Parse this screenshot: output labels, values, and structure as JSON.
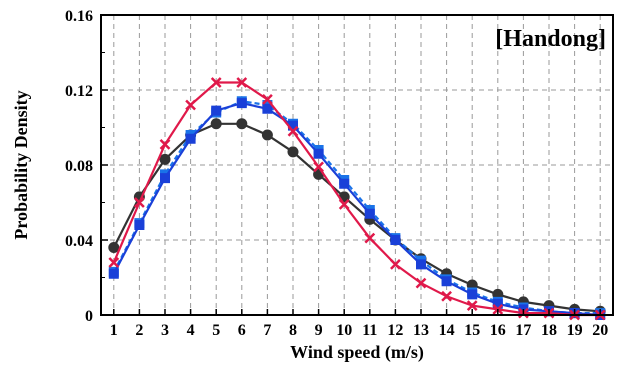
{
  "chart_data": {
    "type": "line",
    "annotation": "[Handong]",
    "xlabel": "Wind speed (m/s)",
    "ylabel": "Probability Density",
    "xlim": [
      0.5,
      20.5
    ],
    "ylim": [
      0,
      0.16
    ],
    "x": [
      1,
      2,
      3,
      4,
      5,
      6,
      7,
      8,
      9,
      10,
      11,
      12,
      13,
      14,
      15,
      16,
      17,
      18,
      19,
      20
    ],
    "xticks": [
      "1",
      "2",
      "3",
      "4",
      "5",
      "6",
      "7",
      "8",
      "9",
      "10",
      "11",
      "12",
      "13",
      "14",
      "15",
      "16",
      "17",
      "18",
      "19",
      "20"
    ],
    "yticks": [
      {
        "value": 0,
        "label": "0"
      },
      {
        "value": 0.04,
        "label": "0.04"
      },
      {
        "value": 0.08,
        "label": "0.08"
      },
      {
        "value": 0.12,
        "label": "0.12"
      },
      {
        "value": 0.16,
        "label": "0.16"
      }
    ],
    "grid": true,
    "legend": "none",
    "series": [
      {
        "color": "#333333",
        "marker": "circle",
        "dashed": false,
        "values": [
          0.036,
          0.063,
          0.083,
          0.096,
          0.102,
          0.102,
          0.096,
          0.087,
          0.075,
          0.063,
          0.051,
          0.04,
          0.03,
          0.022,
          0.016,
          0.011,
          0.007,
          0.005,
          0.003,
          0.002
        ]
      },
      {
        "color": "#1a73e8",
        "marker": "square",
        "dashed": true,
        "values": [
          0.023,
          0.049,
          0.075,
          0.096,
          0.108,
          0.114,
          0.112,
          0.102,
          0.088,
          0.072,
          0.056,
          0.041,
          0.029,
          0.019,
          0.012,
          0.007,
          0.004,
          0.002,
          0.001,
          0.001
        ]
      },
      {
        "color": "#1a40d8",
        "marker": "square",
        "dashed": false,
        "values": [
          0.022,
          0.048,
          0.073,
          0.094,
          0.109,
          0.113,
          0.11,
          0.101,
          0.086,
          0.07,
          0.054,
          0.04,
          0.027,
          0.018,
          0.011,
          0.006,
          0.003,
          0.002,
          0.001,
          0.0
        ]
      },
      {
        "color": "#e0194a",
        "marker": "cross",
        "dashed": false,
        "values": [
          0.028,
          0.06,
          0.091,
          0.112,
          0.124,
          0.124,
          0.115,
          0.098,
          0.079,
          0.059,
          0.041,
          0.027,
          0.017,
          0.01,
          0.005,
          0.003,
          0.001,
          0.001,
          0.0,
          0.0
        ]
      }
    ]
  }
}
